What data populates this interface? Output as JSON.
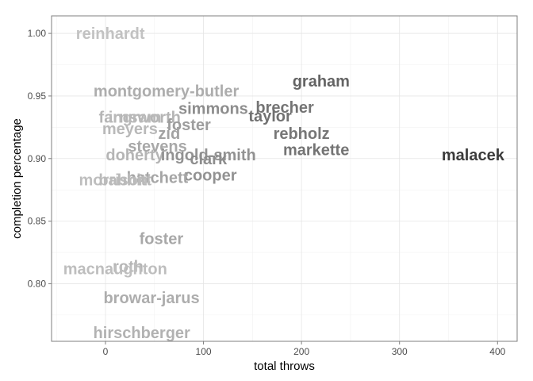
{
  "chart_data": {
    "type": "scatter",
    "title": "",
    "xlabel": "total throws",
    "ylabel": "completion percentage",
    "xlim": [
      -55,
      420
    ],
    "ylim": [
      0.754,
      1.014
    ],
    "x_ticks": [
      0,
      100,
      200,
      300,
      400
    ],
    "x_tick_labels": [
      "0",
      "100",
      "200",
      "300",
      "400"
    ],
    "y_ticks": [
      0.8,
      0.85,
      0.9,
      0.95,
      1.0
    ],
    "y_tick_labels": [
      "0.80",
      "0.85",
      "0.90",
      "0.95",
      "1.00"
    ],
    "grid": true,
    "legend": "none",
    "color_scale": {
      "low": "#d6d6d6",
      "high": "#333333"
    },
    "points": [
      {
        "label": "reinhardt",
        "x": 5,
        "y": 1.0,
        "shade": 0.12
      },
      {
        "label": "montgomery-butler",
        "x": 62,
        "y": 0.954,
        "shade": 0.25
      },
      {
        "label": "graham",
        "x": 220,
        "y": 0.962,
        "shade": 0.7
      },
      {
        "label": "simmons",
        "x": 110,
        "y": 0.94,
        "shade": 0.45
      },
      {
        "label": "brecher",
        "x": 183,
        "y": 0.941,
        "shade": 0.6
      },
      {
        "label": "taylor",
        "x": 168,
        "y": 0.934,
        "shade": 0.62
      },
      {
        "label": "farnsworth",
        "x": 35,
        "y": 0.933,
        "shade": 0.2
      },
      {
        "label": "ingram",
        "x": 30,
        "y": 0.933,
        "shade": 0.18
      },
      {
        "label": "foster",
        "x": 85,
        "y": 0.927,
        "shade": 0.35
      },
      {
        "label": "meyers",
        "x": 25,
        "y": 0.924,
        "shade": 0.18
      },
      {
        "label": "rebholz",
        "x": 200,
        "y": 0.92,
        "shade": 0.58
      },
      {
        "label": "zid",
        "x": 65,
        "y": 0.92,
        "shade": 0.32
      },
      {
        "label": "stevens",
        "x": 53,
        "y": 0.91,
        "shade": 0.28
      },
      {
        "label": "markette",
        "x": 215,
        "y": 0.907,
        "shade": 0.6
      },
      {
        "label": "malacek",
        "x": 375,
        "y": 0.903,
        "shade": 0.95
      },
      {
        "label": "doherty",
        "x": 30,
        "y": 0.903,
        "shade": 0.2
      },
      {
        "label": "ingold-smith",
        "x": 105,
        "y": 0.903,
        "shade": 0.42
      },
      {
        "label": "clark",
        "x": 105,
        "y": 0.9,
        "shade": 0.45
      },
      {
        "label": "cooper",
        "x": 107,
        "y": 0.887,
        "shade": 0.42
      },
      {
        "label": "hatchett",
        "x": 53,
        "y": 0.885,
        "shade": 0.3
      },
      {
        "label": "morrison",
        "x": 8,
        "y": 0.883,
        "shade": 0.15
      },
      {
        "label": "babbitt",
        "x": 20,
        "y": 0.883,
        "shade": 0.17
      },
      {
        "label": "foster",
        "x": 57,
        "y": 0.836,
        "shade": 0.28
      },
      {
        "label": "roth",
        "x": 23,
        "y": 0.814,
        "shade": 0.2
      },
      {
        "label": "macnaughton",
        "x": 10,
        "y": 0.812,
        "shade": 0.15
      },
      {
        "label": "browar-jarus",
        "x": 47,
        "y": 0.789,
        "shade": 0.25
      },
      {
        "label": "hirschberger",
        "x": 37,
        "y": 0.761,
        "shade": 0.22
      }
    ]
  }
}
